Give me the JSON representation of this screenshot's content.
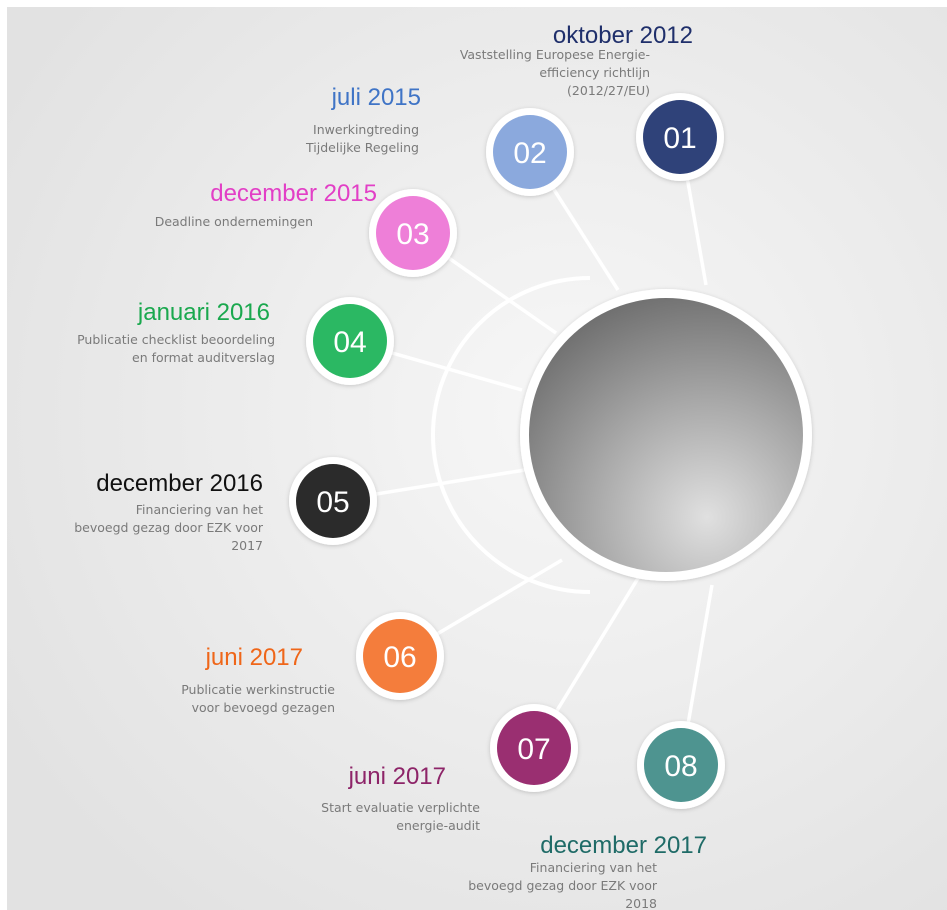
{
  "nodes": [
    {
      "number": "01",
      "date": "oktober 2012",
      "description": [
        "Vaststelling Europese Energie-",
        "efficiency richtlijn",
        "(2012/27/EU)"
      ]
    },
    {
      "number": "02",
      "date": "juli 2015",
      "description": [
        "Inwerkingtreding",
        "Tijdelijke Regeling"
      ]
    },
    {
      "number": "03",
      "date": "december 2015",
      "description": [
        "Deadline ondernemingen"
      ]
    },
    {
      "number": "04",
      "date": "januari 2016",
      "description": [
        "Publicatie checklist beoordeling",
        "en format auditverslag"
      ]
    },
    {
      "number": "05",
      "date": "december 2016",
      "description": [
        "Financiering van het",
        "bevoegd gezag door EZK voor",
        "2017"
      ]
    },
    {
      "number": "06",
      "date": "juni 2017",
      "description": [
        "Publicatie werkinstructie",
        "voor bevoegd gezagen"
      ]
    },
    {
      "number": "07",
      "date": "juni 2017",
      "description": [
        "Start evaluatie verplichte",
        "energie-audit"
      ]
    },
    {
      "number": "08",
      "date": "december 2017",
      "description": [
        "Financiering van het",
        "bevoegd gezag door EZK voor",
        "2018"
      ]
    }
  ]
}
